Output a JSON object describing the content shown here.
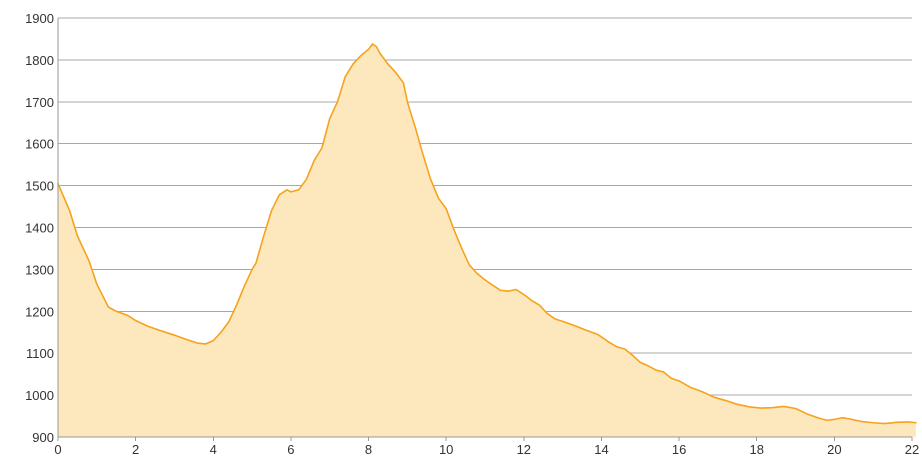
{
  "chart_data": {
    "type": "area",
    "title": "",
    "xlabel": "",
    "ylabel": "",
    "xlim": [
      0,
      22
    ],
    "ylim": [
      900,
      1900
    ],
    "x_ticks": [
      "0",
      "2",
      "4",
      "6",
      "8",
      "10",
      "12",
      "14",
      "16",
      "18",
      "20",
      "22"
    ],
    "y_ticks": [
      "900",
      "1000",
      "1100",
      "1200",
      "1300",
      "1400",
      "1500",
      "1600",
      "1700",
      "1800",
      "1900"
    ],
    "grid": true,
    "legend": "none",
    "colors": {
      "line": "#f7a21d",
      "fill": "#fde8bd",
      "grid": "#a8a8a8",
      "axis": "#999999"
    },
    "series": [
      {
        "x": [
          0,
          0.3,
          0.5,
          0.8,
          1.0,
          1.3,
          1.5,
          1.8,
          2.0,
          2.3,
          2.6,
          3.0,
          3.3,
          3.6,
          3.8,
          4.0,
          4.2,
          4.4,
          4.6,
          4.8,
          5.0,
          5.1,
          5.3,
          5.5,
          5.7,
          5.9,
          6.0,
          6.2,
          6.4,
          6.6,
          6.8,
          7.0,
          7.2,
          7.4,
          7.6,
          7.8,
          8.0,
          8.1,
          8.2,
          8.3,
          8.5,
          8.7,
          8.9,
          9.0,
          9.2,
          9.4,
          9.6,
          9.8,
          10.0,
          10.2,
          10.4,
          10.6,
          10.8,
          11.0,
          11.2,
          11.4,
          11.6,
          11.8,
          12.0,
          12.2,
          12.4,
          12.6,
          12.8,
          13.0,
          13.3,
          13.6,
          13.9,
          14.2,
          14.4,
          14.6,
          14.8,
          15.0,
          15.2,
          15.4,
          15.6,
          15.8,
          16.0,
          16.3,
          16.6,
          16.9,
          17.2,
          17.5,
          17.8,
          18.1,
          18.4,
          18.7,
          19.0,
          19.3,
          19.6,
          19.8,
          20.0,
          20.2,
          20.4,
          20.7,
          21.0,
          21.3,
          21.6,
          21.9,
          22.1
        ],
        "y": [
          1505,
          1440,
          1380,
          1320,
          1265,
          1210,
          1200,
          1190,
          1178,
          1165,
          1155,
          1143,
          1133,
          1124,
          1122,
          1130,
          1150,
          1175,
          1215,
          1260,
          1300,
          1315,
          1380,
          1440,
          1478,
          1490,
          1485,
          1490,
          1515,
          1560,
          1590,
          1660,
          1700,
          1760,
          1790,
          1810,
          1825,
          1838,
          1832,
          1815,
          1790,
          1770,
          1745,
          1700,
          1640,
          1575,
          1515,
          1470,
          1445,
          1395,
          1350,
          1310,
          1290,
          1275,
          1262,
          1250,
          1248,
          1252,
          1240,
          1226,
          1215,
          1195,
          1182,
          1176,
          1166,
          1155,
          1145,
          1126,
          1115,
          1110,
          1095,
          1078,
          1070,
          1060,
          1055,
          1040,
          1034,
          1018,
          1008,
          995,
          987,
          978,
          972,
          969,
          970,
          973,
          968,
          955,
          945,
          940,
          942,
          946,
          943,
          937,
          934,
          932,
          935,
          936,
          934
        ]
      }
    ]
  }
}
